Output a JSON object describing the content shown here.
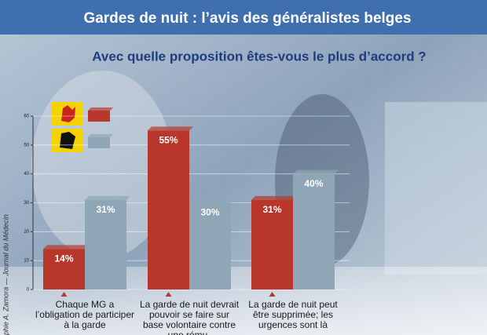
{
  "chart_data": {
    "type": "bar",
    "title": "Gardes de nuit : l’avis des généralistes belges",
    "subtitle": "Avec quelle proposition êtes-vous le plus d’accord ?",
    "categories": [
      "Chaque MG a l’obligation de participer à la garde",
      "La garde de nuit devrait pouvoir se faire sur base volontaire contre une rému-",
      "La garde de nuit peut être supprimée; les urgences sont là"
    ],
    "series": [
      {
        "color": "#b8372a",
        "values": [
          14,
          55,
          31
        ],
        "value_labels": [
          "14%",
          "55%",
          "31%"
        ]
      },
      {
        "color": "#8fa6b6",
        "values": [
          31,
          30,
          40
        ],
        "value_labels": [
          "31%",
          "30%",
          "40%"
        ]
      }
    ],
    "ylim": [
      0,
      60
    ],
    "yticks": [
      0,
      10,
      20,
      30,
      40,
      50,
      60
    ],
    "grid": true,
    "credit": "phie A. Zamora — Journal du Médecin"
  }
}
